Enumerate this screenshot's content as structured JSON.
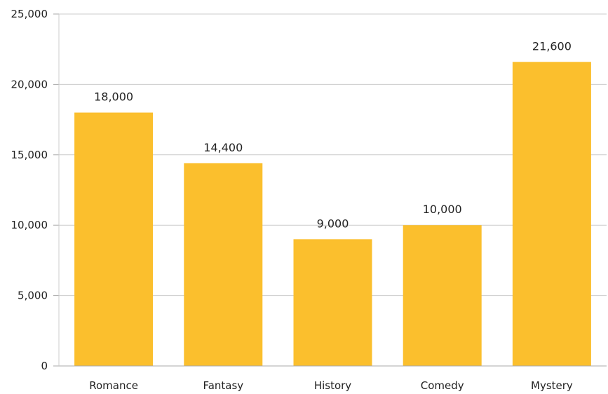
{
  "chart_data": {
    "type": "bar",
    "title": "",
    "xlabel": "",
    "ylabel": "",
    "categories": [
      "Romance",
      "Fantasy",
      "History",
      "Comedy",
      "Mystery"
    ],
    "values": [
      18000,
      14400,
      9000,
      10000,
      21600
    ],
    "data_labels": [
      "18,000",
      "14,400",
      "9,000",
      "10,000",
      "21,600"
    ],
    "ylim": [
      0,
      25000
    ],
    "yticks": [
      0,
      5000,
      10000,
      15000,
      20000,
      25000
    ],
    "ytick_labels": [
      "0",
      "5,000",
      "10,000",
      "15,000",
      "20,000",
      "25,000"
    ],
    "grid": true,
    "legend": "none",
    "colors": {
      "bar": "#FBBF2D",
      "grid": "#CCCCCC",
      "axis": "#AAAAAA",
      "text": "#222222"
    }
  }
}
